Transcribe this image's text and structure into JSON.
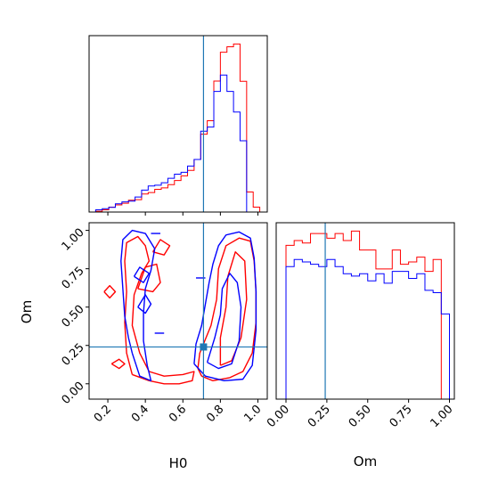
{
  "chart_data": [
    {
      "panel": "H0 histogram",
      "type": "histogram",
      "xlim": [
        0.1,
        1.05
      ],
      "truth": 0.71,
      "truth_color": "#1f77b4",
      "bin_edges": [
        0.1,
        0.135,
        0.17,
        0.205,
        0.24,
        0.275,
        0.31,
        0.345,
        0.38,
        0.415,
        0.45,
        0.485,
        0.52,
        0.555,
        0.59,
        0.625,
        0.66,
        0.695,
        0.73,
        0.765,
        0.8,
        0.835,
        0.87,
        0.905,
        0.94,
        0.975,
        1.01
      ],
      "series": [
        {
          "name": "",
          "color": "#ff0000",
          "counts": [
            0,
            0.3,
            0.8,
            1.8,
            2.6,
            3.2,
            4.3,
            4.5,
            6.6,
            7.1,
            8.3,
            8.8,
            10.0,
            11.5,
            13.2,
            15.2,
            19.2,
            28.4,
            33.3,
            47.8,
            58.3,
            60.3,
            61.3,
            47.7,
            7.3,
            1.8
          ]
        },
        {
          "name": "",
          "color": "#0000ff",
          "counts": [
            0,
            0.8,
            1.2,
            1.7,
            3.0,
            3.7,
            4.0,
            5.5,
            8.0,
            9.5,
            9.8,
            10.7,
            12.3,
            13.8,
            14.5,
            16.8,
            19.2,
            29.5,
            31.0,
            44.0,
            50.0,
            44.0,
            36.5,
            26.0,
            0,
            0
          ]
        }
      ]
    },
    {
      "panel": "Om histogram",
      "type": "histogram",
      "xlim": [
        -0.06,
        1.03
      ],
      "truth": 0.24,
      "truth_color": "#1f77b4",
      "bin_edges": [
        -0.05,
        0,
        0.05,
        0.1,
        0.15,
        0.2,
        0.25,
        0.3,
        0.35,
        0.4,
        0.45,
        0.5,
        0.55,
        0.6,
        0.65,
        0.7,
        0.75,
        0.8,
        0.85,
        0.9,
        0.95,
        1.0
      ],
      "series": [
        {
          "name": "",
          "color": "#ff0000",
          "counts": [
            0,
            65,
            67,
            66,
            70,
            70,
            68,
            70,
            67,
            71,
            63,
            63,
            55,
            55,
            63,
            57,
            58,
            60,
            54,
            59,
            0
          ]
        },
        {
          "name": "",
          "color": "#0000ff",
          "counts": [
            0,
            56,
            59,
            58,
            57,
            56,
            59,
            56,
            53,
            52,
            53,
            50,
            53,
            49,
            54,
            54,
            51,
            53,
            46,
            45,
            36
          ]
        }
      ]
    },
    {
      "panel": "H0 vs Om contours",
      "type": "contour",
      "xlabel": "H0",
      "ylabel": "Om",
      "xlim": [
        0.1,
        1.05
      ],
      "ylim": [
        -0.1,
        1.05
      ],
      "xticks": [
        "0.2",
        "0.4",
        "0.6",
        "0.8",
        "1.0"
      ],
      "xtick_values": [
        0.2,
        0.4,
        0.6,
        0.8,
        1.0
      ],
      "yticks": [
        "0.00",
        "0.25",
        "0.50",
        "0.75",
        "1.00"
      ],
      "ytick_values": [
        0,
        0.25,
        0.5,
        0.75,
        1.0
      ],
      "truth": {
        "x": 0.71,
        "y": 0.24
      },
      "truth_color": "#1f77b4",
      "series": [
        {
          "name": "",
          "color": "#ff0000",
          "contours": [
            [
              [
                0.7,
                0.05
              ],
              [
                0.76,
                0.02
              ],
              [
                0.85,
                0.04
              ],
              [
                0.92,
                0.08
              ],
              [
                0.97,
                0.2
              ],
              [
                0.99,
                0.4
              ],
              [
                0.99,
                0.6
              ],
              [
                0.98,
                0.8
              ],
              [
                0.96,
                0.93
              ],
              [
                0.9,
                0.95
              ],
              [
                0.83,
                0.9
              ],
              [
                0.79,
                0.75
              ],
              [
                0.78,
                0.55
              ],
              [
                0.75,
                0.38
              ],
              [
                0.69,
                0.2
              ],
              [
                0.68,
                0.1
              ],
              [
                0.7,
                0.05
              ]
            ],
            [
              [
                0.8,
                0.12
              ],
              [
                0.86,
                0.15
              ],
              [
                0.91,
                0.3
              ],
              [
                0.94,
                0.55
              ],
              [
                0.93,
                0.8
              ],
              [
                0.88,
                0.86
              ],
              [
                0.84,
                0.7
              ],
              [
                0.83,
                0.5
              ],
              [
                0.8,
                0.3
              ],
              [
                0.8,
                0.12
              ]
            ],
            [
              [
                0.22,
                0.13
              ],
              [
                0.26,
                0.1
              ],
              [
                0.29,
                0.13
              ],
              [
                0.26,
                0.16
              ],
              [
                0.22,
                0.13
              ]
            ],
            [
              [
                0.18,
                0.6
              ],
              [
                0.21,
                0.56
              ],
              [
                0.24,
                0.6
              ],
              [
                0.21,
                0.64
              ],
              [
                0.18,
                0.6
              ]
            ],
            [
              [
                0.33,
                0.06
              ],
              [
                0.42,
                0.02
              ],
              [
                0.5,
                0.0
              ],
              [
                0.58,
                0.0
              ],
              [
                0.65,
                0.02
              ],
              [
                0.66,
                0.08
              ],
              [
                0.6,
                0.06
              ],
              [
                0.5,
                0.05
              ],
              [
                0.42,
                0.08
              ],
              [
                0.37,
                0.2
              ],
              [
                0.33,
                0.38
              ],
              [
                0.34,
                0.58
              ],
              [
                0.38,
                0.72
              ],
              [
                0.42,
                0.8
              ],
              [
                0.4,
                0.9
              ],
              [
                0.36,
                0.96
              ],
              [
                0.3,
                0.92
              ],
              [
                0.29,
                0.8
              ],
              [
                0.3,
                0.6
              ],
              [
                0.29,
                0.4
              ],
              [
                0.3,
                0.2
              ],
              [
                0.33,
                0.06
              ]
            ],
            [
              [
                0.36,
                0.62
              ],
              [
                0.44,
                0.6
              ],
              [
                0.48,
                0.66
              ],
              [
                0.46,
                0.78
              ],
              [
                0.4,
                0.76
              ],
              [
                0.36,
                0.62
              ]
            ],
            [
              [
                0.44,
                0.86
              ],
              [
                0.5,
                0.84
              ],
              [
                0.53,
                0.9
              ],
              [
                0.48,
                0.94
              ],
              [
                0.44,
                0.86
              ]
            ]
          ]
        },
        {
          "name": "",
          "color": "#0000ff",
          "contours": [
            [
              [
                0.66,
                0.13
              ],
              [
                0.72,
                0.05
              ],
              [
                0.82,
                0.02
              ],
              [
                0.92,
                0.03
              ],
              [
                0.97,
                0.12
              ],
              [
                0.99,
                0.35
              ],
              [
                0.99,
                0.6
              ],
              [
                0.98,
                0.82
              ],
              [
                0.96,
                0.95
              ],
              [
                0.9,
                0.99
              ],
              [
                0.83,
                0.97
              ],
              [
                0.79,
                0.9
              ],
              [
                0.76,
                0.78
              ],
              [
                0.74,
                0.66
              ],
              [
                0.72,
                0.52
              ],
              [
                0.7,
                0.38
              ],
              [
                0.67,
                0.26
              ],
              [
                0.66,
                0.13
              ]
            ],
            [
              [
                0.73,
                0.14
              ],
              [
                0.79,
                0.1
              ],
              [
                0.86,
                0.13
              ],
              [
                0.9,
                0.28
              ],
              [
                0.91,
                0.5
              ],
              [
                0.89,
                0.66
              ],
              [
                0.85,
                0.72
              ],
              [
                0.81,
                0.62
              ],
              [
                0.8,
                0.45
              ],
              [
                0.77,
                0.3
              ],
              [
                0.73,
                0.14
              ]
            ],
            [
              [
                0.33,
                0.2
              ],
              [
                0.37,
                0.05
              ],
              [
                0.43,
                0.02
              ],
              [
                0.41,
                0.12
              ],
              [
                0.39,
                0.28
              ],
              [
                0.39,
                0.46
              ],
              [
                0.4,
                0.62
              ],
              [
                0.43,
                0.74
              ],
              [
                0.45,
                0.88
              ],
              [
                0.4,
                0.98
              ],
              [
                0.33,
                1.0
              ],
              [
                0.28,
                0.94
              ],
              [
                0.27,
                0.8
              ],
              [
                0.28,
                0.62
              ],
              [
                0.29,
                0.44
              ],
              [
                0.31,
                0.3
              ],
              [
                0.33,
                0.2
              ]
            ],
            [
              [
                0.36,
                0.5
              ],
              [
                0.4,
                0.46
              ],
              [
                0.43,
                0.52
              ],
              [
                0.4,
                0.58
              ],
              [
                0.36,
                0.5
              ]
            ],
            [
              [
                0.34,
                0.7
              ],
              [
                0.39,
                0.66
              ],
              [
                0.42,
                0.72
              ],
              [
                0.37,
                0.76
              ],
              [
                0.34,
                0.7
              ]
            ],
            [
              [
                0.45,
                0.33
              ],
              [
                0.5,
                0.33
              ]
            ],
            [
              [
                0.43,
                0.98
              ],
              [
                0.48,
                0.98
              ]
            ],
            [
              [
                0.67,
                0.69
              ],
              [
                0.72,
                0.69
              ]
            ]
          ]
        }
      ]
    },
    {
      "panel": "Om axis",
      "xlabel": "Om",
      "xticks": [
        "0.00",
        "0.25",
        "0.50",
        "0.75",
        "1.00"
      ],
      "xtick_values": [
        0,
        0.25,
        0.5,
        0.75,
        1.0
      ]
    }
  ]
}
